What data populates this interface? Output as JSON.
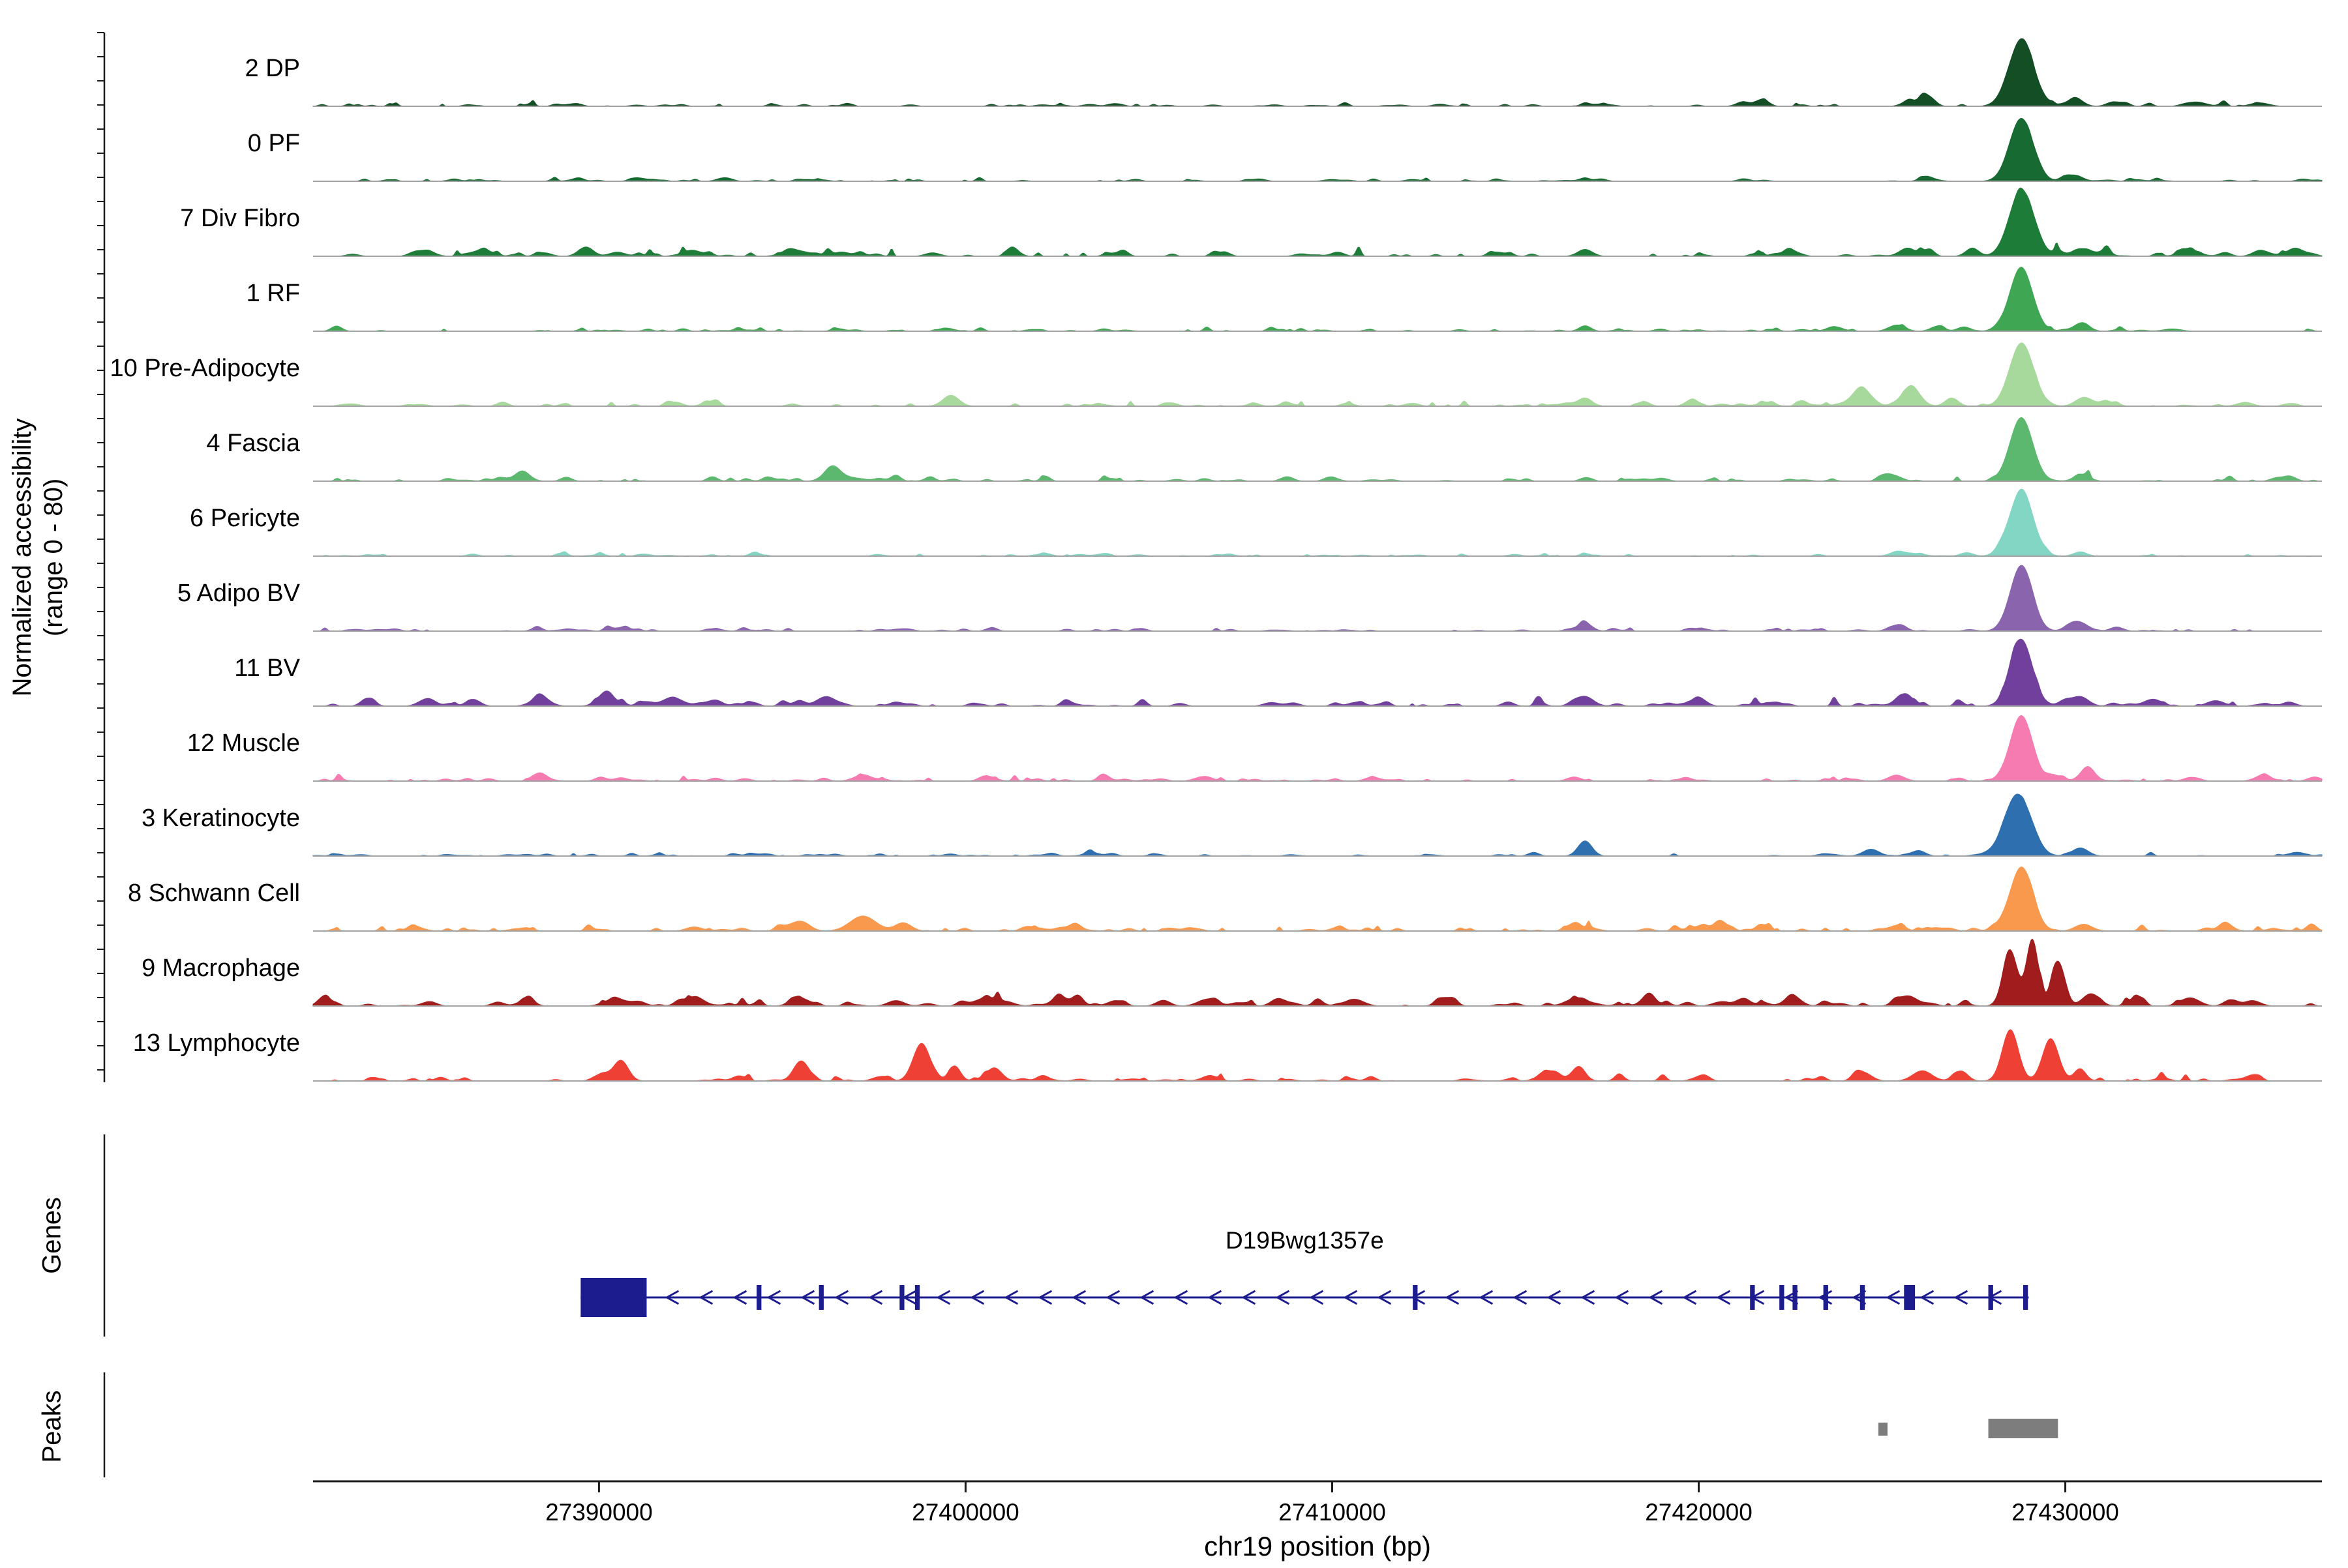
{
  "figure": {
    "y_axis_label_line1": "Normalized accessibility",
    "y_axis_label_line2": "(range 0 - 80)",
    "genes_section_label": "Genes",
    "peaks_section_label": "Peaks",
    "x_axis_label": "chr19 position (bp)"
  },
  "chart_data": {
    "type": "area",
    "title": "",
    "xlabel": "chr19 position (bp)",
    "ylabel": "Normalized accessibility (range 0 - 80)",
    "y_range_per_track": [
      0,
      80
    ],
    "xlim": [
      27382200,
      27437000
    ],
    "x_ticks": [
      27390000,
      27400000,
      27410000,
      27420000,
      27430000
    ],
    "x_tick_labels": [
      "27390000",
      "27400000",
      "27410000",
      "27420000",
      "27430000"
    ],
    "legend": "none",
    "grid": false,
    "colors": {
      "gene": "#1c1c8f",
      "peaks": "#7d7d7d",
      "baseline": "#a3a3a3"
    },
    "tracks": [
      {
        "label": "2 DP",
        "color": "#134e25",
        "noise": 0.018,
        "peaks": [
          [
            27416900,
            120,
            0.05
          ],
          [
            27421800,
            150,
            0.07
          ],
          [
            27426200,
            180,
            0.1
          ],
          [
            27428800,
            340,
            0.95
          ],
          [
            27430300,
            200,
            0.1
          ],
          [
            27431300,
            180,
            0.06
          ],
          [
            27433600,
            250,
            0.06
          ],
          [
            27435300,
            250,
            0.05
          ]
        ]
      },
      {
        "label": "0 PF",
        "color": "#176a31",
        "noise": 0.012,
        "peaks": [
          [
            27416900,
            130,
            0.05
          ],
          [
            27426200,
            170,
            0.07
          ],
          [
            27428800,
            320,
            0.92
          ],
          [
            27430300,
            190,
            0.08
          ]
        ]
      },
      {
        "label": "7 Div Fibro",
        "color": "#1d7c38",
        "noise": 0.028,
        "peaks": [
          [
            27385300,
            220,
            0.08
          ],
          [
            27386800,
            260,
            0.09
          ],
          [
            27388500,
            200,
            0.05
          ],
          [
            27390500,
            220,
            0.06
          ],
          [
            27392600,
            260,
            0.07
          ],
          [
            27395400,
            350,
            0.08
          ],
          [
            27396600,
            200,
            0.06
          ],
          [
            27399100,
            200,
            0.05
          ],
          [
            27404000,
            200,
            0.04
          ],
          [
            27416900,
            200,
            0.1
          ],
          [
            27425700,
            220,
            0.12
          ],
          [
            27428800,
            330,
            0.96
          ],
          [
            27430500,
            240,
            0.1
          ],
          [
            27433400,
            280,
            0.08
          ],
          [
            27435400,
            240,
            0.06
          ]
        ]
      },
      {
        "label": "1 RF",
        "color": "#3fa653",
        "noise": 0.015,
        "peaks": [
          [
            27416900,
            160,
            0.08
          ],
          [
            27425400,
            220,
            0.09
          ],
          [
            27426500,
            180,
            0.07
          ],
          [
            27428800,
            310,
            0.92
          ],
          [
            27430400,
            200,
            0.1
          ]
        ]
      },
      {
        "label": "10 Pre-Adipocyte",
        "color": "#a6d99b",
        "noise": 0.02,
        "peaks": [
          [
            27392100,
            180,
            0.05
          ],
          [
            27399600,
            220,
            0.16
          ],
          [
            27405600,
            180,
            0.05
          ],
          [
            27416900,
            190,
            0.12
          ],
          [
            27424400,
            260,
            0.22
          ],
          [
            27425800,
            240,
            0.28
          ],
          [
            27426900,
            180,
            0.12
          ],
          [
            27428800,
            320,
            0.92
          ],
          [
            27430500,
            230,
            0.12
          ],
          [
            27434900,
            220,
            0.05
          ]
        ]
      },
      {
        "label": "4 Fascia",
        "color": "#5cb86e",
        "noise": 0.018,
        "peaks": [
          [
            27387900,
            220,
            0.12
          ],
          [
            27396500,
            260,
            0.11
          ],
          [
            27404000,
            160,
            0.04
          ],
          [
            27416900,
            150,
            0.05
          ],
          [
            27425400,
            190,
            0.06
          ],
          [
            27428800,
            310,
            0.93
          ],
          [
            27430400,
            190,
            0.08
          ]
        ]
      },
      {
        "label": "6 Pericyte",
        "color": "#82d6c3",
        "noise": 0.011,
        "peaks": [
          [
            27416900,
            140,
            0.04
          ],
          [
            27425400,
            180,
            0.05
          ],
          [
            27428800,
            320,
            0.94
          ],
          [
            27430400,
            180,
            0.06
          ]
        ]
      },
      {
        "label": "5 Adipo BV",
        "color": "#8a64ad",
        "noise": 0.015,
        "peaks": [
          [
            27404800,
            150,
            0.04
          ],
          [
            27416900,
            190,
            0.1
          ],
          [
            27425400,
            220,
            0.08
          ],
          [
            27428800,
            300,
            0.96
          ],
          [
            27430300,
            230,
            0.14
          ],
          [
            27431400,
            180,
            0.06
          ]
        ]
      },
      {
        "label": "11 BV",
        "color": "#71409c",
        "noise": 0.028,
        "peaks": [
          [
            27385300,
            220,
            0.1
          ],
          [
            27386600,
            180,
            0.08
          ],
          [
            27388400,
            260,
            0.11
          ],
          [
            27390100,
            220,
            0.1
          ],
          [
            27392000,
            300,
            0.12
          ],
          [
            27393200,
            180,
            0.08
          ],
          [
            27396200,
            260,
            0.14
          ],
          [
            27398100,
            180,
            0.06
          ],
          [
            27410600,
            180,
            0.05
          ],
          [
            27416900,
            230,
            0.14
          ],
          [
            27420100,
            180,
            0.06
          ],
          [
            27425600,
            260,
            0.12
          ],
          [
            27428800,
            300,
            0.97
          ],
          [
            27430400,
            230,
            0.14
          ],
          [
            27432400,
            230,
            0.1
          ],
          [
            27434100,
            230,
            0.08
          ],
          [
            27436100,
            180,
            0.06
          ]
        ]
      },
      {
        "label": "12 Muscle",
        "color": "#f57bb0",
        "noise": 0.022,
        "peaks": [
          [
            27388400,
            180,
            0.06
          ],
          [
            27390600,
            180,
            0.05
          ],
          [
            27397100,
            220,
            0.06
          ],
          [
            27400600,
            180,
            0.05
          ],
          [
            27406600,
            180,
            0.05
          ],
          [
            27411000,
            160,
            0.04
          ],
          [
            27416600,
            190,
            0.06
          ],
          [
            27425400,
            220,
            0.08
          ],
          [
            27428800,
            290,
            0.94
          ],
          [
            27430600,
            230,
            0.12
          ],
          [
            27433400,
            180,
            0.05
          ],
          [
            27435400,
            230,
            0.08
          ],
          [
            27436800,
            180,
            0.06
          ]
        ]
      },
      {
        "label": "3 Keratinocyte",
        "color": "#2e6fb0",
        "noise": 0.013,
        "peaks": [
          [
            27404000,
            140,
            0.04
          ],
          [
            27416900,
            190,
            0.22
          ],
          [
            27424700,
            220,
            0.1
          ],
          [
            27426000,
            180,
            0.08
          ],
          [
            27428700,
            360,
            0.9
          ],
          [
            27430400,
            230,
            0.1
          ]
        ]
      },
      {
        "label": "8 Schwann Cell",
        "color": "#f9994e",
        "noise": 0.026,
        "peaks": [
          [
            27385000,
            220,
            0.06
          ],
          [
            27388000,
            180,
            0.05
          ],
          [
            27392600,
            220,
            0.06
          ],
          [
            27395400,
            260,
            0.12
          ],
          [
            27397200,
            350,
            0.22
          ],
          [
            27398300,
            220,
            0.12
          ],
          [
            27402600,
            180,
            0.05
          ],
          [
            27406100,
            180,
            0.05
          ],
          [
            27410100,
            180,
            0.04
          ],
          [
            27416600,
            220,
            0.08
          ],
          [
            27420600,
            180,
            0.05
          ],
          [
            27425400,
            220,
            0.08
          ],
          [
            27428800,
            310,
            0.93
          ],
          [
            27430500,
            230,
            0.1
          ],
          [
            27434400,
            180,
            0.05
          ]
        ]
      },
      {
        "label": "9 Macrophage",
        "color": "#a11c1c",
        "noise": 0.035,
        "peaks": [
          [
            27385400,
            180,
            0.06
          ],
          [
            27388000,
            220,
            0.08
          ],
          [
            27390600,
            220,
            0.08
          ],
          [
            27392600,
            260,
            0.1
          ],
          [
            27395500,
            260,
            0.1
          ],
          [
            27398100,
            220,
            0.08
          ],
          [
            27400600,
            350,
            0.12
          ],
          [
            27402600,
            260,
            0.1
          ],
          [
            27404100,
            220,
            0.08
          ],
          [
            27406600,
            260,
            0.1
          ],
          [
            27408600,
            180,
            0.06
          ],
          [
            27410600,
            260,
            0.1
          ],
          [
            27413100,
            220,
            0.06
          ],
          [
            27416600,
            260,
            0.1
          ],
          [
            27418600,
            220,
            0.08
          ],
          [
            27420600,
            220,
            0.06
          ],
          [
            27422600,
            220,
            0.08
          ],
          [
            27425700,
            260,
            0.15
          ],
          [
            27428500,
            200,
            0.8
          ],
          [
            27429100,
            160,
            0.97
          ],
          [
            27429800,
            180,
            0.6
          ],
          [
            27430700,
            230,
            0.18
          ],
          [
            27433400,
            260,
            0.12
          ],
          [
            27435100,
            220,
            0.08
          ]
        ]
      },
      {
        "label": "13 Lymphocyte",
        "color": "#ee4035",
        "noise": 0.022,
        "peaks": [
          [
            27390600,
            200,
            0.3
          ],
          [
            27395500,
            200,
            0.28
          ],
          [
            27398800,
            230,
            0.55
          ],
          [
            27399700,
            160,
            0.22
          ],
          [
            27400800,
            200,
            0.18
          ],
          [
            27402100,
            160,
            0.08
          ],
          [
            27415900,
            260,
            0.14
          ],
          [
            27416700,
            200,
            0.12
          ],
          [
            27424500,
            220,
            0.12
          ],
          [
            27426100,
            260,
            0.15
          ],
          [
            27427100,
            180,
            0.1
          ],
          [
            27428500,
            220,
            0.75
          ],
          [
            27429600,
            220,
            0.62
          ],
          [
            27430400,
            160,
            0.18
          ]
        ]
      }
    ],
    "gene": {
      "name": "D19Bwg1357e",
      "strand": "-",
      "start": 27389500,
      "end": 27429000,
      "first_exon": [
        27389500,
        27391300
      ],
      "exons": [
        [
          27394300,
          27394430
        ],
        [
          27396000,
          27396130
        ],
        [
          27398200,
          27398330
        ],
        [
          27398620,
          27398750
        ],
        [
          27412200,
          27412330
        ],
        [
          27421400,
          27421530
        ],
        [
          27422200,
          27422330
        ],
        [
          27422560,
          27422690
        ],
        [
          27423400,
          27423530
        ],
        [
          27424400,
          27424530
        ],
        [
          27425600,
          27425900
        ],
        [
          27427900,
          27428030
        ],
        [
          27428850,
          27428980
        ]
      ]
    },
    "peaks_track": [
      {
        "start": 27424900,
        "end": 27425150
      },
      {
        "start": 27427900,
        "end": 27429800
      }
    ]
  }
}
